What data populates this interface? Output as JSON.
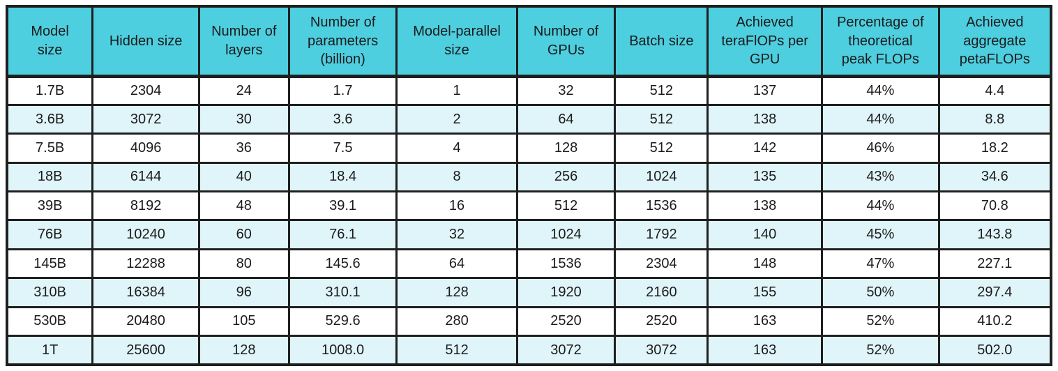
{
  "chart_data": {
    "type": "table",
    "columns": [
      "Model size",
      "Hidden size",
      "Number of layers",
      "Number of parameters (billion)",
      "Model-parallel size",
      "Number of GPUs",
      "Batch size",
      "Achieved teraFlOPs per GPU",
      "Percentage of theoretical peak FLOPs",
      "Achieved aggregate petaFLOPs"
    ],
    "rows": [
      [
        "1.7B",
        "2304",
        "24",
        "1.7",
        "1",
        "32",
        "512",
        "137",
        "44%",
        "4.4"
      ],
      [
        "3.6B",
        "3072",
        "30",
        "3.6",
        "2",
        "64",
        "512",
        "138",
        "44%",
        "8.8"
      ],
      [
        "7.5B",
        "4096",
        "36",
        "7.5",
        "4",
        "128",
        "512",
        "142",
        "46%",
        "18.2"
      ],
      [
        "18B",
        "6144",
        "40",
        "18.4",
        "8",
        "256",
        "1024",
        "135",
        "43%",
        "34.6"
      ],
      [
        "39B",
        "8192",
        "48",
        "39.1",
        "16",
        "512",
        "1536",
        "138",
        "44%",
        "70.8"
      ],
      [
        "76B",
        "10240",
        "60",
        "76.1",
        "32",
        "1024",
        "1792",
        "140",
        "45%",
        "143.8"
      ],
      [
        "145B",
        "12288",
        "80",
        "145.6",
        "64",
        "1536",
        "2304",
        "148",
        "47%",
        "227.1"
      ],
      [
        "310B",
        "16384",
        "96",
        "310.1",
        "128",
        "1920",
        "2160",
        "155",
        "50%",
        "297.4"
      ],
      [
        "530B",
        "20480",
        "105",
        "529.6",
        "280",
        "2520",
        "2520",
        "163",
        "52%",
        "410.2"
      ],
      [
        "1T",
        "25600",
        "128",
        "1008.0",
        "512",
        "3072",
        "3072",
        "163",
        "52%",
        "502.0"
      ]
    ]
  },
  "style": {
    "header_bg": "#4DCFE0",
    "row_bg": "#FFFFFF",
    "row_stripe_bg": "#E0F5F9",
    "border_color": "#1F1F1F",
    "text_color": "#1B1B1B"
  }
}
